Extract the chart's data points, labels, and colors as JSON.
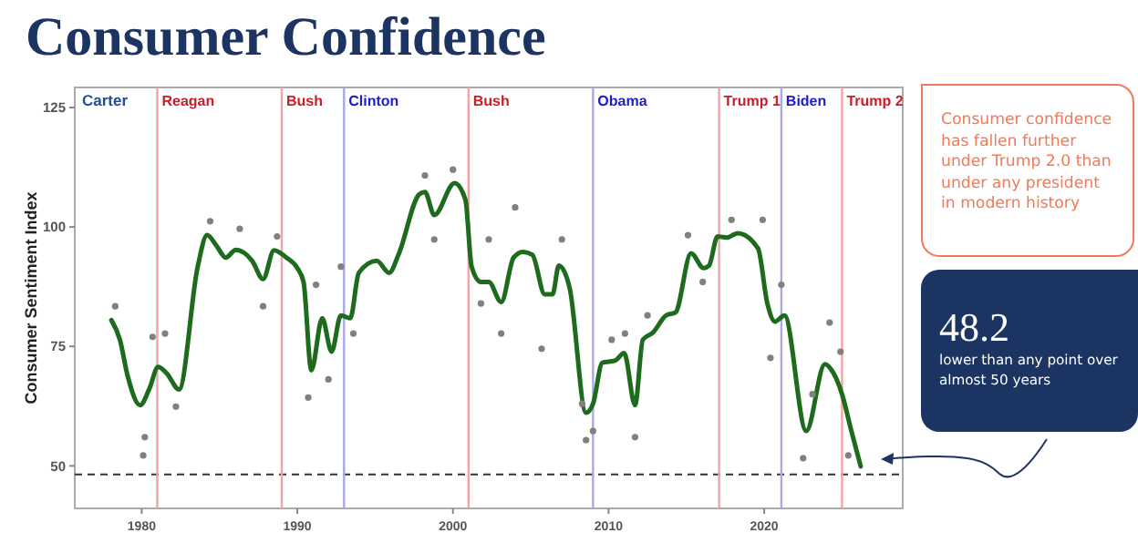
{
  "chart_data": {
    "type": "line",
    "title": "Consumer Confidence",
    "ylabel": "Consumer Sentiment Index",
    "xlim": [
      1975.7,
      2028.9
    ],
    "ylim": [
      41.1,
      129.2
    ],
    "xticks": [
      1980,
      1990,
      2000,
      2010,
      2020
    ],
    "yticks": [
      50,
      75,
      100,
      125
    ],
    "grid": false,
    "series": [
      {
        "type": "scatter",
        "color": "#808080",
        "x": [
          1978.3,
          1980.1,
          1980.2,
          1980.7,
          1981.5,
          1982.2,
          1984.4,
          1986.3,
          1987.8,
          1988.7,
          1990.7,
          1991.2,
          1992,
          1992.8,
          1993.6,
          1998.2,
          1998.8,
          2000,
          2001.8,
          2002.3,
          2003.1,
          2004,
          2005.7,
          2007,
          2008.3,
          2008.55,
          2009,
          2010.2,
          2011.05,
          2011.7,
          2012.5,
          2015.1,
          2016.05,
          2017.9,
          2019.9,
          2020.4,
          2021.1,
          2022.5,
          2023.1,
          2024.2,
          2024.9,
          2025.4
        ],
        "values": [
          83.4,
          52.2,
          56,
          77,
          77.7,
          62.4,
          101.2,
          99.6,
          83.4,
          98,
          64.3,
          87.9,
          68.1,
          91.7,
          77.7,
          110.8,
          97.4,
          112,
          84,
          97.4,
          77.7,
          104.1,
          74.5,
          97.4,
          63,
          55.4,
          57.3,
          76.4,
          77.7,
          56,
          81.5,
          98.3,
          88.5,
          101.5,
          101.5,
          72.6,
          87.9,
          51.6,
          65,
          80,
          73.9,
          52.2
        ]
      },
      {
        "color": "#1e6b1e",
        "x": [
          1978.05,
          1978.6,
          1979.1,
          1979.9,
          1980.5,
          1981.05,
          1981.6,
          1982.4,
          1983.6,
          1984.2,
          1984.8,
          1985.4,
          1986.05,
          1987.1,
          1987.8,
          1988.5,
          1989.3,
          1990,
          1990.4,
          1990.9,
          1991.6,
          1992.2,
          1992.8,
          1993.4,
          1993.95,
          1995.1,
          1995.9,
          1996.5,
          1997.85,
          1998.2,
          1998.8,
          2000.1,
          2000.8,
          2001.2,
          2001.8,
          2002.3,
          2003.1,
          2003.9,
          2004.5,
          2005.1,
          2005.9,
          2006.4,
          2006.8,
          2007.5,
          2008.55,
          2009,
          2009.6,
          2010.4,
          2011,
          2011.7,
          2012.2,
          2012.85,
          2013.7,
          2014.3,
          2015.3,
          2016.1,
          2016.45,
          2017,
          2017.6,
          2018.3,
          2019.6,
          2020.2,
          2020.7,
          2021.3,
          2022.7,
          2023.9,
          2024.45,
          2025,
          2025.6,
          2026.2
        ],
        "values": [
          80.5,
          76.4,
          68.8,
          62.7,
          66.2,
          70.7,
          69.4,
          66,
          91.7,
          98.3,
          96.1,
          93.6,
          95.2,
          92.9,
          89.1,
          95.1,
          93.6,
          91.4,
          88.5,
          70,
          80.9,
          73.9,
          81.5,
          80.9,
          90.4,
          92.9,
          90.4,
          94.2,
          106.9,
          107.3,
          102.5,
          109.2,
          105.7,
          91.7,
          88.5,
          88.5,
          84.3,
          93.6,
          94.8,
          94.2,
          85.9,
          85.9,
          91.9,
          87.2,
          61.1,
          63,
          71.6,
          72,
          73.6,
          62.7,
          76.4,
          77.9,
          81.5,
          82.1,
          94.5,
          91.4,
          91.9,
          98,
          97.8,
          98.7,
          95.5,
          84,
          80.2,
          81.5,
          57.3,
          71.3,
          69.4,
          65,
          57.3,
          49.9
        ]
      }
    ],
    "ref_lines": [
      {
        "axis": "y",
        "value": 48.2,
        "color": "#333333",
        "line_style": "dashed"
      },
      {
        "axis": "x",
        "value": 1981,
        "label": "Reagan",
        "color": "#f2a3a8"
      },
      {
        "axis": "x",
        "value": 1989,
        "label": "Bush",
        "color": "#f2a3a8"
      },
      {
        "axis": "x",
        "value": 1993,
        "label": "Clinton",
        "color": "#a7a7f2"
      },
      {
        "axis": "x",
        "value": 2001,
        "label": "Bush",
        "color": "#f2a3a8"
      },
      {
        "axis": "x",
        "value": 2009,
        "label": "Obama",
        "color": "#a7a7f2"
      },
      {
        "axis": "x",
        "value": 2017.1,
        "label": "Trump 1",
        "color": "#f2a3a8"
      },
      {
        "axis": "x",
        "value": 2021.1,
        "label": "Biden",
        "color": "#a7a7f2"
      },
      {
        "axis": "x",
        "value": 2025,
        "label": "Trump 2",
        "color": "#f2a3a8"
      }
    ],
    "annotations": [
      "Carter",
      "Consumer confidence has fallen further under Trump 2.0 than under any president in modern history",
      "48.2",
      "lower than any point over almost 50 years"
    ]
  }
}
